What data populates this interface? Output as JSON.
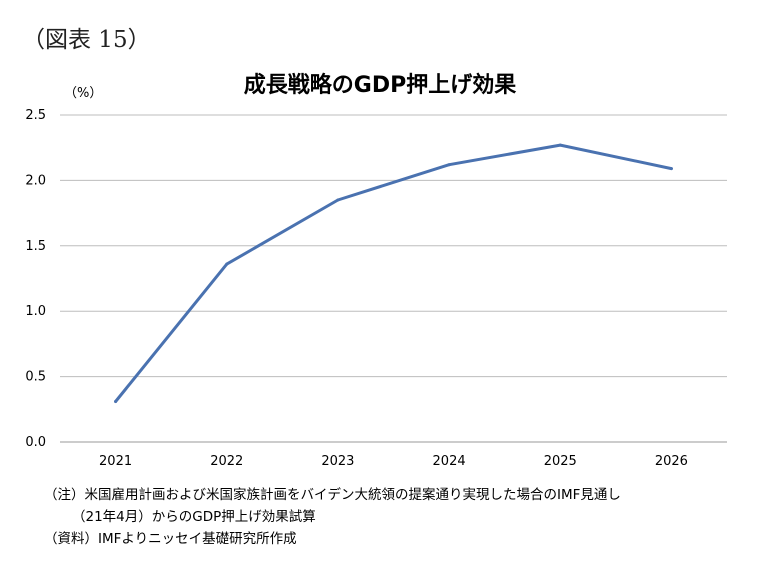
{
  "figure_label": "（図表 15）",
  "chart_data": {
    "type": "line",
    "title": "成長戦略のGDP押上げ効果",
    "unit_label": "（%）",
    "xlabel": "",
    "ylabel": "",
    "categories": [
      "2021",
      "2022",
      "2023",
      "2024",
      "2025",
      "2026"
    ],
    "series": [
      {
        "values": [
          0.31,
          1.36,
          1.85,
          2.12,
          2.27,
          2.09
        ],
        "color": "#4a72b0"
      }
    ],
    "ylim": [
      0,
      2.5
    ],
    "yticks": [
      "0.0",
      "0.5",
      "1.0",
      "1.5",
      "2.0",
      "2.5"
    ],
    "grid": true,
    "legend": "none"
  },
  "notes": {
    "line1": "（注）米国雇用計画および米国家族計画をバイデン大統領の提案通り実現した場合のIMF見通し",
    "line2": "（21年4月）からのGDP押上げ効果試算",
    "line3": "（資料）IMFよりニッセイ基礎研究所作成"
  }
}
